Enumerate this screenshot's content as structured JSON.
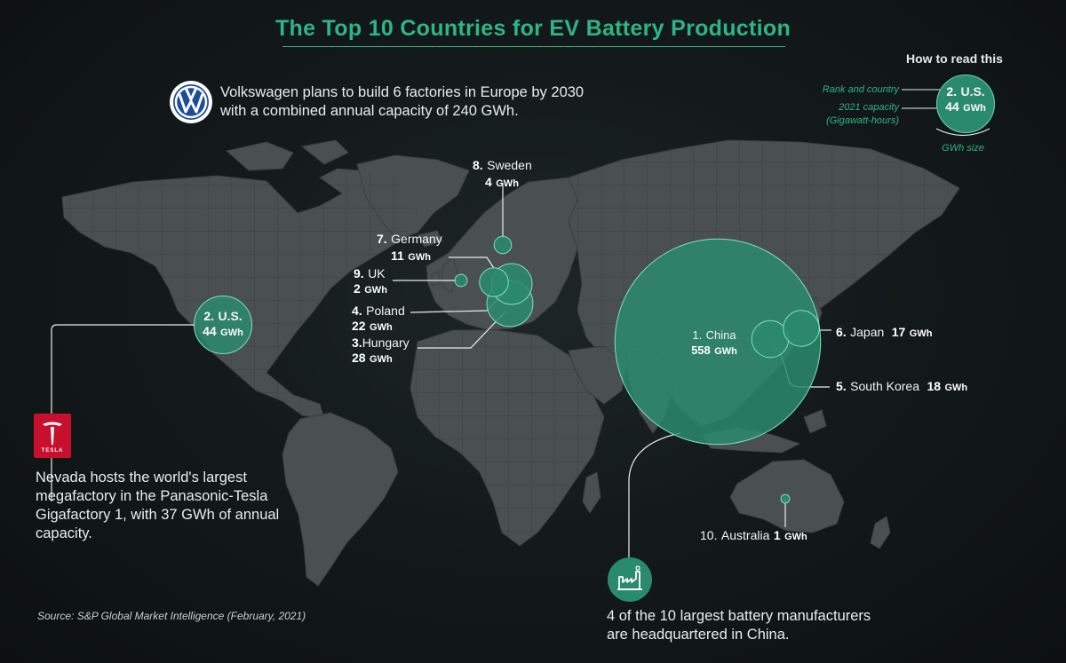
{
  "title": "The Top 10 Countries for EV Battery Production",
  "colors": {
    "accent": "#2fb585",
    "bubble_fill": "#2a8a6c",
    "land": "#4a4f50",
    "background": "#141a1b"
  },
  "how_to_read": {
    "heading": "How to read this",
    "rank_note": "Rank and country",
    "capacity_note_1": "2021 capacity",
    "capacity_note_2": "(Gigawatt-hours)",
    "size_note": "GWh size",
    "example_rank": "2.",
    "example_country": "U.S.",
    "example_value": "44",
    "example_unit": "GWh"
  },
  "callouts": {
    "vw_logo_icon": "volkswagen-logo",
    "vw_text": "Volkswagen plans to build 6 factories in Europe by 2030 with a combined annual capacity of 240 GWh.",
    "tesla_logo_icon": "tesla-logo",
    "tesla_logo_text": "TESLA",
    "tesla_text": "Nevada hosts the world's largest megafactory in the Panasonic-Tesla Gigafactory 1, with 37 GWh of annual capacity.",
    "factory_icon": "factory-icon",
    "china_text": "4 of the 10 largest battery manufacturers are headquartered in China."
  },
  "source": "Source: S&P Global Market Intelligence (February, 2021)",
  "unit": "GWh",
  "countries": [
    {
      "rank": "1.",
      "name": "China",
      "value": 558
    },
    {
      "rank": "2.",
      "name": "U.S.",
      "value": 44
    },
    {
      "rank": "3.",
      "name": "Hungary",
      "value": 28
    },
    {
      "rank": "4.",
      "name": "Poland",
      "value": 22
    },
    {
      "rank": "5.",
      "name": "South Korea",
      "value": 18
    },
    {
      "rank": "6.",
      "name": "Japan",
      "value": 17
    },
    {
      "rank": "7.",
      "name": "Germany",
      "value": 11
    },
    {
      "rank": "8.",
      "name": "Sweden",
      "value": 4
    },
    {
      "rank": "9.",
      "name": "UK",
      "value": 2
    },
    {
      "rank": "10.",
      "name": "Australia",
      "value": 1
    }
  ]
}
